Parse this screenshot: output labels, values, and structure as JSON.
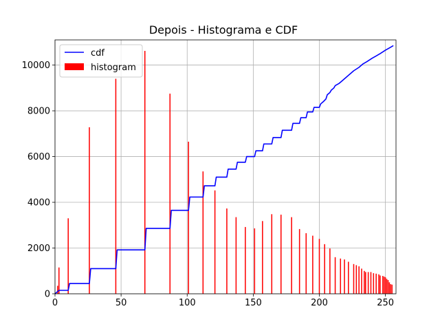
{
  "chart_data": {
    "type": "bar+line",
    "title": "Depois - Histograma e CDF",
    "xlim": [
      0,
      258
    ],
    "ylim": [
      0,
      11100
    ],
    "grid": true,
    "legend_position": "upper left",
    "x_ticks": [
      0,
      50,
      100,
      150,
      200,
      250
    ],
    "y_ticks": [
      0,
      2000,
      4000,
      6000,
      8000,
      10000
    ],
    "series": [
      {
        "name": "cdf",
        "type": "line",
        "color": "#0000ff",
        "x": [
          0,
          2,
          3,
          10,
          11,
          26,
          27,
          46,
          47,
          68,
          69,
          87,
          88,
          101,
          102,
          112,
          113,
          121,
          122,
          130,
          131,
          137,
          138,
          144,
          145,
          151,
          152,
          157,
          158,
          164,
          165,
          171,
          172,
          179,
          180,
          185,
          186,
          190,
          191,
          195,
          196,
          200,
          201,
          203,
          205,
          206,
          208,
          209,
          211,
          212,
          215,
          217,
          220,
          223,
          226,
          230,
          233,
          236,
          240,
          243,
          246,
          250,
          253,
          256
        ],
        "y": [
          0,
          100,
          150,
          150,
          450,
          450,
          1100,
          1100,
          1920,
          1920,
          2860,
          2860,
          3650,
          3650,
          4230,
          4230,
          4720,
          4720,
          5100,
          5100,
          5450,
          5450,
          5750,
          5750,
          6000,
          6000,
          6250,
          6250,
          6550,
          6550,
          6830,
          6830,
          7150,
          7150,
          7450,
          7450,
          7700,
          7700,
          7950,
          7950,
          8150,
          8150,
          8300,
          8400,
          8520,
          8700,
          8800,
          8900,
          9000,
          9100,
          9200,
          9300,
          9450,
          9600,
          9750,
          9900,
          10050,
          10150,
          10300,
          10400,
          10500,
          10650,
          10750,
          10850
        ]
      },
      {
        "name": "histogram",
        "type": "bar",
        "color": "#ff0000",
        "x": [
          2,
          3,
          10,
          26,
          46,
          68,
          87,
          101,
          112,
          121,
          130,
          137,
          144,
          151,
          157,
          164,
          171,
          179,
          185,
          190,
          195,
          200,
          204,
          208,
          212,
          216,
          219,
          222,
          226,
          228,
          230,
          232,
          234,
          235,
          237,
          239,
          241,
          243,
          245,
          246,
          248,
          249,
          250,
          251,
          252,
          253,
          254,
          255
        ],
        "y": [
          350,
          1150,
          3300,
          7280,
          9400,
          10620,
          8750,
          6650,
          5350,
          4520,
          3730,
          3350,
          2920,
          2860,
          3180,
          3480,
          3460,
          3350,
          2830,
          2650,
          2540,
          2400,
          2170,
          1980,
          1600,
          1540,
          1500,
          1400,
          1300,
          1250,
          1200,
          1100,
          1000,
          950,
          950,
          950,
          900,
          880,
          850,
          800,
          780,
          750,
          720,
          650,
          600,
          500,
          420,
          400
        ]
      }
    ]
  }
}
